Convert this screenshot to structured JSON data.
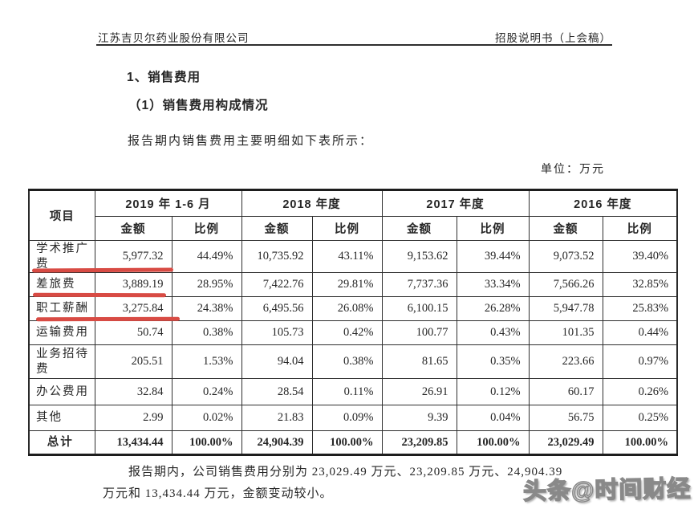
{
  "header": {
    "company": "江苏吉贝尔药业股份有限公司",
    "doc_title": "招股说明书（上会稿）"
  },
  "headings": {
    "h1": "1、销售费用",
    "h2": "（1）销售费用构成情况"
  },
  "intro": "报告期内销售费用主要明细如下表所示：",
  "unit_label": "单位：万元",
  "table": {
    "item_header": "项目",
    "period_headers": [
      "2019 年 1-6 月",
      "2018 年度",
      "2017 年度",
      "2016 年度"
    ],
    "sub_headers": {
      "amount": "金额",
      "ratio": "比例"
    },
    "rows": [
      {
        "item": "学术推广费",
        "values": [
          "5,977.32",
          "44.49%",
          "10,735.92",
          "43.11%",
          "9,153.62",
          "39.44%",
          "9,073.52",
          "39.40%"
        ]
      },
      {
        "item": "差旅费",
        "values": [
          "3,889.19",
          "28.95%",
          "7,422.76",
          "29.81%",
          "7,737.36",
          "33.34%",
          "7,566.26",
          "32.85%"
        ]
      },
      {
        "item": "职工薪酬",
        "values": [
          "3,275.84",
          "24.38%",
          "6,495.56",
          "26.08%",
          "6,100.15",
          "26.28%",
          "5,947.78",
          "25.83%"
        ]
      },
      {
        "item": "运输费用",
        "values": [
          "50.74",
          "0.38%",
          "105.73",
          "0.42%",
          "100.77",
          "0.43%",
          "101.35",
          "0.44%"
        ]
      },
      {
        "item": "业务招待费",
        "values": [
          "205.51",
          "1.53%",
          "94.04",
          "0.38%",
          "81.65",
          "0.35%",
          "223.66",
          "0.97%"
        ]
      },
      {
        "item": "办公费用",
        "values": [
          "32.84",
          "0.24%",
          "28.54",
          "0.11%",
          "26.91",
          "0.12%",
          "60.17",
          "0.26%"
        ]
      },
      {
        "item": "其他",
        "values": [
          "2.99",
          "0.02%",
          "21.83",
          "0.09%",
          "9.39",
          "0.04%",
          "56.75",
          "0.25%"
        ]
      }
    ],
    "total_row": {
      "item": "总计",
      "values": [
        "13,434.44",
        "100.00%",
        "24,904.39",
        "100.00%",
        "23,209.85",
        "100.00%",
        "23,029.49",
        "100.00%"
      ]
    }
  },
  "annotations": {
    "red_underline_color": "#d84b44",
    "marked_rows": [
      "学术推广费",
      "差旅费",
      "职工薪酬"
    ]
  },
  "footer": {
    "line1": "报告期内，公司销售费用分别为 23,029.49 万元、23,209.85 万元、24,904.39",
    "line2": "万元和 13,434.44 万元，金额变动较小。"
  },
  "watermark": "头条@时间财经"
}
